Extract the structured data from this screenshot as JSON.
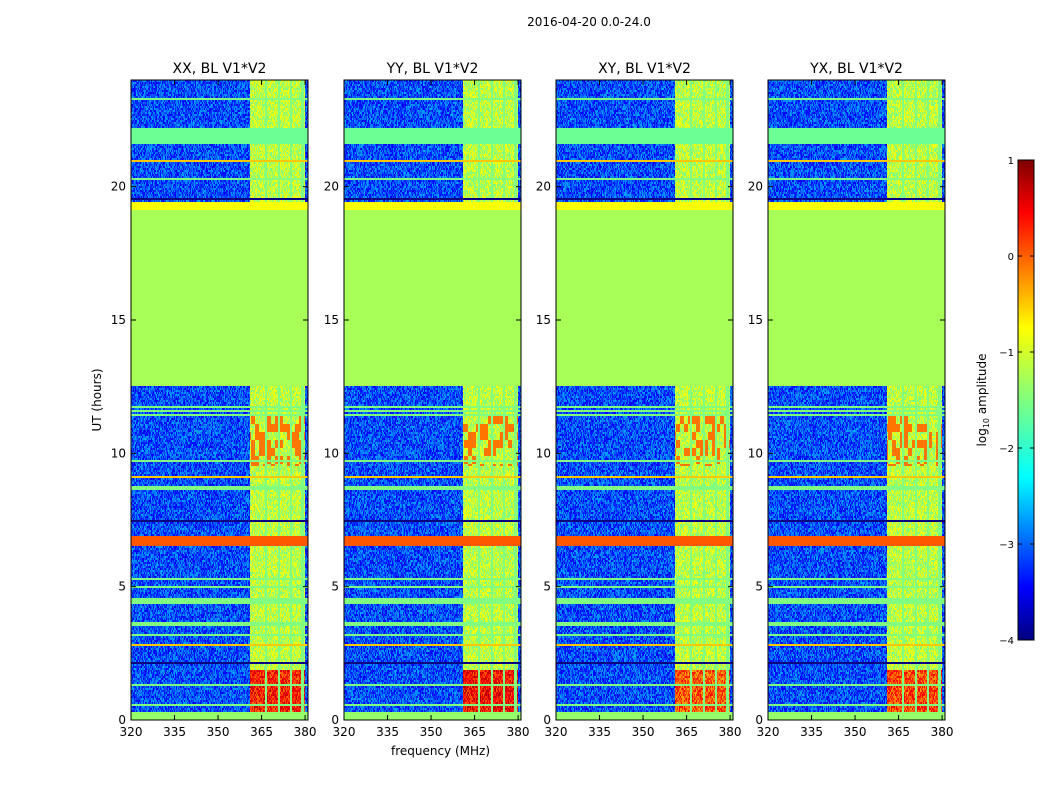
{
  "suptitle": "2016-04-20 0.0-24.0",
  "shared": {
    "ylabel": "UT (hours)",
    "xlabel": "frequency (MHz)",
    "xlim": [
      320,
      381
    ],
    "ylim": [
      0,
      24
    ],
    "xticks": [
      320,
      335,
      350,
      365,
      380
    ],
    "yticks": [
      0,
      5,
      10,
      15,
      20
    ]
  },
  "colorbar": {
    "label_prefix": "log",
    "label_sub": "10",
    "label_suffix": " amplitude",
    "range": [
      -4,
      1
    ],
    "ticks": [
      "1",
      "0",
      "−1",
      "−2",
      "−3",
      "−4"
    ],
    "tick_values": [
      1,
      0,
      -1,
      -2,
      -3,
      -4
    ],
    "colormap": "jet"
  },
  "chart_data": [
    {
      "type": "heatmap",
      "title": "XX, BL V1*V2",
      "polarization": "XX",
      "x_label_shown": false,
      "y_label_shown": true,
      "flagged_time_range": [
        12.5,
        19.1
      ],
      "flagged_value": -1.3,
      "background_value": -3.0,
      "bright_band_MHz": [
        361,
        380
      ],
      "rfi_peak_value": 0.7
    },
    {
      "type": "heatmap",
      "title": "YY, BL V1*V2",
      "polarization": "YY",
      "x_label_shown": true,
      "y_label_shown": false,
      "flagged_time_range": [
        12.5,
        19.1
      ],
      "flagged_value": -1.3,
      "background_value": -3.0,
      "bright_band_MHz": [
        361,
        380
      ],
      "rfi_peak_value": 0.8
    },
    {
      "type": "heatmap",
      "title": "XY, BL V1*V2",
      "polarization": "XY",
      "x_label_shown": false,
      "y_label_shown": false,
      "flagged_time_range": [
        12.5,
        19.1
      ],
      "flagged_value": -1.3,
      "background_value": -3.0,
      "bright_band_MHz": [
        361,
        380
      ],
      "rfi_peak_value": 0.4
    },
    {
      "type": "heatmap",
      "title": "YX, BL V1*V2",
      "polarization": "YX",
      "x_label_shown": false,
      "y_label_shown": false,
      "flagged_time_range": [
        12.5,
        19.1
      ],
      "flagged_value": -1.3,
      "background_value": -3.0,
      "bright_band_MHz": [
        361,
        380
      ],
      "rfi_peak_value": 0.5
    }
  ]
}
